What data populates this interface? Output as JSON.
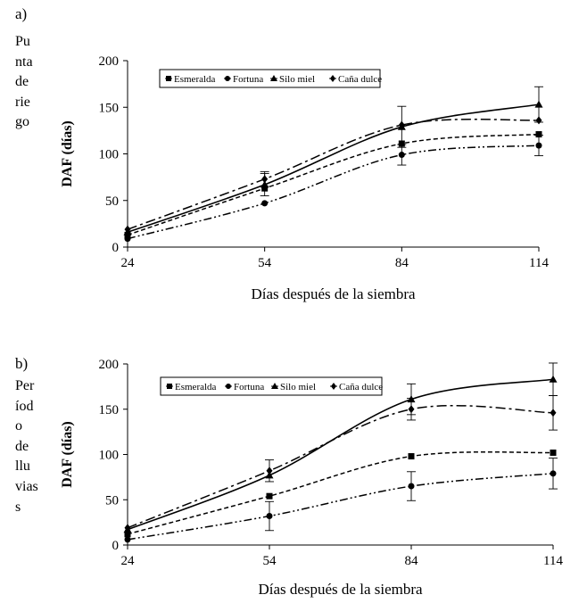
{
  "chart_data": [
    {
      "type": "line",
      "panel": "a)",
      "side_label": [
        "Pu",
        "nta",
        "de",
        "rie",
        "go"
      ],
      "xlabel": "Días después de la siembra",
      "ylabel": "DAF  (días)",
      "xlim": [
        24,
        114
      ],
      "ylim": [
        0,
        200
      ],
      "xticks": [
        "24",
        "54",
        "84",
        "114"
      ],
      "yticks": [
        "0",
        "50",
        "100",
        "150",
        "200"
      ],
      "x": [
        24,
        54,
        84,
        114
      ],
      "legend": "top, inside plot, boxed",
      "series": [
        {
          "name": "Esmeralda",
          "marker": "square",
          "line": "dashed",
          "values": [
            13,
            63,
            111,
            121
          ],
          "errors": [
            0,
            0,
            0,
            0
          ]
        },
        {
          "name": "Fortuna",
          "marker": "circle",
          "line": "dash-dot-dot",
          "values": [
            9,
            47,
            99,
            109
          ],
          "errors": [
            0,
            0,
            11,
            11
          ]
        },
        {
          "name": "Silo miel",
          "marker": "triangle",
          "line": "solid",
          "values": [
            16,
            67,
            129,
            153
          ],
          "errors": [
            0,
            12,
            22,
            19
          ]
        },
        {
          "name": "Caña dulce",
          "marker": "diamond",
          "line": "long-dash-dot",
          "values": [
            19,
            73,
            131,
            136
          ],
          "errors": [
            0,
            8,
            0,
            0
          ]
        }
      ]
    },
    {
      "type": "line",
      "panel": "b)",
      "side_label": [
        "Per",
        "íod",
        "o",
        "de",
        "llu",
        "vias",
        "s"
      ],
      "xlabel": "Días después de la siembra",
      "ylabel": "DAF  (días)",
      "xlim": [
        24,
        114
      ],
      "ylim": [
        0,
        200
      ],
      "xticks": [
        "24",
        "54",
        "84",
        "114"
      ],
      "yticks": [
        "0",
        "50",
        "100",
        "150",
        "200"
      ],
      "x": [
        24,
        54,
        84,
        114
      ],
      "legend": "top, inside plot, boxed",
      "series": [
        {
          "name": "Esmeralda",
          "marker": "square",
          "line": "dashed",
          "values": [
            12,
            54,
            98,
            102
          ],
          "errors": [
            0,
            0,
            0,
            0
          ]
        },
        {
          "name": "Fortuna",
          "marker": "circle",
          "line": "dash-dot-dot",
          "values": [
            6,
            32,
            65,
            79
          ],
          "errors": [
            0,
            16,
            16,
            17
          ]
        },
        {
          "name": "Silo miel",
          "marker": "triangle",
          "line": "solid",
          "values": [
            17,
            77,
            161,
            183
          ],
          "errors": [
            0,
            0,
            17,
            18
          ]
        },
        {
          "name": "Caña dulce",
          "marker": "diamond",
          "line": "long-dash-dot",
          "values": [
            19,
            82,
            150,
            146
          ],
          "errors": [
            0,
            12,
            12,
            19
          ]
        }
      ]
    }
  ]
}
